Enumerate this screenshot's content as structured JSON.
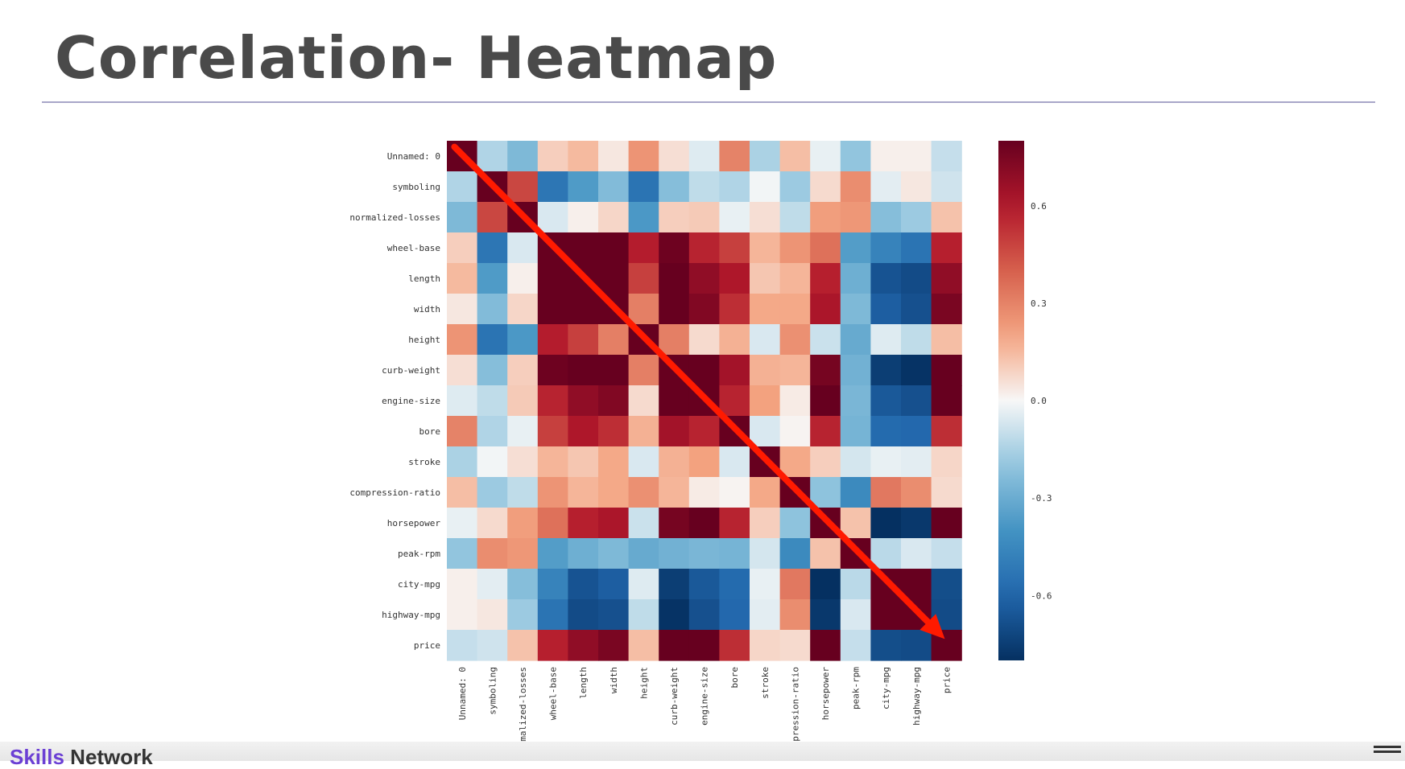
{
  "slide": {
    "title": "Correlation- Heatmap"
  },
  "footer": {
    "brand_part1": "Skills",
    "brand_part2": " Network",
    "menu_icon": "hamburger-icon"
  },
  "chart_data": {
    "type": "heatmap",
    "title": "",
    "labels": [
      "Unnamed: 0",
      "symboling",
      "normalized-losses",
      "wheel-base",
      "length",
      "width",
      "height",
      "curb-weight",
      "engine-size",
      "bore",
      "stroke",
      "compression-ratio",
      "horsepower",
      "peak-rpm",
      "city-mpg",
      "highway-mpg",
      "price"
    ],
    "matrix": [
      [
        0.8,
        -0.14,
        -0.25,
        0.1,
        0.15,
        0.04,
        0.25,
        0.06,
        -0.05,
        0.3,
        -0.15,
        0.14,
        -0.03,
        -0.2,
        0.02,
        0.02,
        -0.1
      ],
      [
        -0.14,
        0.8,
        0.47,
        -0.53,
        -0.37,
        -0.24,
        -0.54,
        -0.23,
        -0.11,
        -0.14,
        -0.01,
        -0.18,
        0.07,
        0.27,
        -0.04,
        0.04,
        -0.08
      ],
      [
        -0.25,
        0.47,
        0.8,
        -0.06,
        0.02,
        0.08,
        -0.38,
        0.1,
        0.11,
        -0.03,
        0.06,
        -0.11,
        0.22,
        0.24,
        -0.23,
        -0.18,
        0.13
      ],
      [
        0.1,
        -0.53,
        -0.06,
        0.8,
        0.88,
        0.82,
        0.59,
        0.78,
        0.57,
        0.49,
        0.16,
        0.25,
        0.35,
        -0.36,
        -0.47,
        -0.54,
        0.58
      ],
      [
        0.15,
        -0.37,
        0.02,
        0.88,
        0.8,
        0.86,
        0.49,
        0.88,
        0.69,
        0.61,
        0.12,
        0.16,
        0.58,
        -0.29,
        -0.67,
        -0.7,
        0.69
      ],
      [
        0.04,
        -0.24,
        0.08,
        0.82,
        0.86,
        0.8,
        0.31,
        0.87,
        0.73,
        0.54,
        0.19,
        0.19,
        0.62,
        -0.25,
        -0.63,
        -0.68,
        0.75
      ],
      [
        0.25,
        -0.54,
        -0.38,
        0.59,
        0.49,
        0.31,
        0.8,
        0.31,
        0.07,
        0.17,
        -0.06,
        0.26,
        -0.09,
        -0.31,
        -0.05,
        -0.11,
        0.14
      ],
      [
        0.06,
        -0.23,
        0.1,
        0.78,
        0.88,
        0.87,
        0.31,
        0.8,
        0.85,
        0.64,
        0.17,
        0.16,
        0.76,
        -0.28,
        -0.75,
        -0.79,
        0.83
      ],
      [
        -0.05,
        -0.11,
        0.11,
        0.57,
        0.69,
        0.73,
        0.07,
        0.85,
        0.8,
        0.57,
        0.21,
        0.03,
        0.82,
        -0.26,
        -0.65,
        -0.68,
        0.87
      ],
      [
        0.3,
        -0.14,
        -0.03,
        0.49,
        0.61,
        0.54,
        0.17,
        0.64,
        0.57,
        0.8,
        -0.06,
        0.01,
        0.57,
        -0.27,
        -0.58,
        -0.59,
        0.54
      ],
      [
        -0.15,
        -0.01,
        0.06,
        0.16,
        0.12,
        0.19,
        -0.06,
        0.17,
        0.21,
        -0.06,
        0.8,
        0.19,
        0.1,
        -0.07,
        -0.03,
        -0.04,
        0.08
      ],
      [
        0.14,
        -0.18,
        -0.11,
        0.25,
        0.16,
        0.19,
        0.26,
        0.16,
        0.03,
        0.01,
        0.19,
        0.8,
        -0.21,
        -0.44,
        0.33,
        0.27,
        0.07
      ],
      [
        -0.03,
        0.07,
        0.22,
        0.35,
        0.58,
        0.62,
        -0.09,
        0.76,
        0.82,
        0.57,
        0.1,
        -0.21,
        0.8,
        0.13,
        -0.8,
        -0.77,
        0.81
      ],
      [
        -0.2,
        0.27,
        0.24,
        -0.36,
        -0.29,
        -0.25,
        -0.31,
        -0.28,
        -0.26,
        -0.27,
        -0.07,
        -0.44,
        0.13,
        0.8,
        -0.12,
        -0.06,
        -0.1
      ],
      [
        0.02,
        -0.04,
        -0.23,
        -0.47,
        -0.67,
        -0.63,
        -0.05,
        -0.75,
        -0.65,
        -0.58,
        -0.03,
        0.33,
        -0.8,
        -0.12,
        0.8,
        0.97,
        -0.69
      ],
      [
        0.02,
        0.04,
        -0.18,
        -0.54,
        -0.7,
        -0.68,
        -0.11,
        -0.79,
        -0.68,
        -0.59,
        -0.04,
        0.27,
        -0.77,
        -0.06,
        0.97,
        0.8,
        -0.7
      ],
      [
        -0.1,
        -0.08,
        0.13,
        0.58,
        0.69,
        0.75,
        0.14,
        0.83,
        0.87,
        0.54,
        0.08,
        0.07,
        0.81,
        -0.1,
        -0.69,
        -0.7,
        0.8
      ]
    ],
    "colormap": "RdBu_r",
    "vmin": -0.8,
    "vmax": 0.8,
    "colorbar_ticks": [
      "0.6",
      "0.3",
      "0.0",
      "-0.3",
      "-0.6"
    ],
    "colorbar_tick_values": [
      0.6,
      0.3,
      0.0,
      -0.3,
      -0.6
    ],
    "annotation": {
      "type": "arrow",
      "color": "#ff1a00",
      "from_cell": [
        0,
        0
      ],
      "to_cell": [
        16,
        16
      ]
    },
    "grid": false
  }
}
